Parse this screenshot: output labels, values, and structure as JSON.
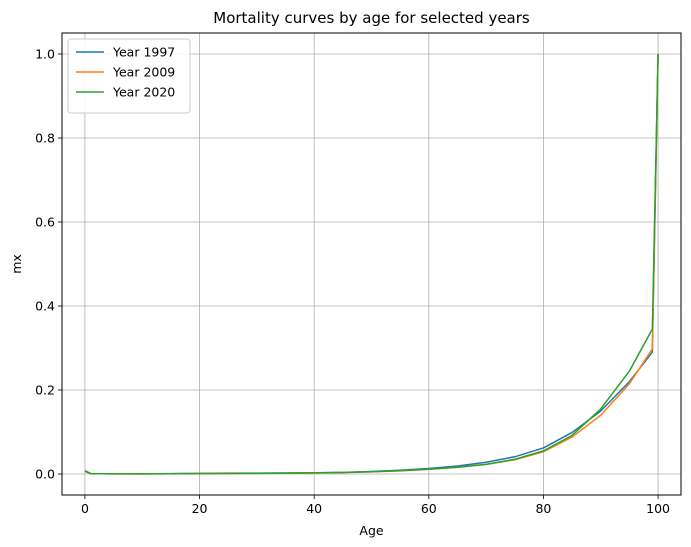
{
  "chart_data": {
    "type": "line",
    "title": "Mortality curves by age for selected years",
    "xlabel": "Age",
    "ylabel": "mx",
    "xlim": [
      -4,
      104
    ],
    "ylim": [
      -0.05,
      1.05
    ],
    "xticks": [
      0,
      20,
      40,
      60,
      80,
      100
    ],
    "xtick_labels": [
      "0",
      "20",
      "40",
      "60",
      "80",
      "100"
    ],
    "yticks": [
      0.0,
      0.2,
      0.4,
      0.6,
      0.8,
      1.0
    ],
    "ytick_labels": [
      "0.0",
      "0.2",
      "0.4",
      "0.6",
      "0.8",
      "1.0"
    ],
    "grid": true,
    "legend_position": "top-left",
    "series": [
      {
        "name": "Year 1997",
        "color": "#1f77b4",
        "x": [
          0,
          1,
          5,
          10,
          15,
          20,
          25,
          30,
          35,
          40,
          45,
          50,
          55,
          60,
          65,
          70,
          75,
          80,
          85,
          90,
          95,
          99,
          100
        ],
        "y": [
          0.008,
          0.001,
          0.0005,
          0.0004,
          0.0008,
          0.0015,
          0.002,
          0.002,
          0.0025,
          0.003,
          0.004,
          0.006,
          0.009,
          0.013,
          0.019,
          0.028,
          0.041,
          0.062,
          0.099,
          0.15,
          0.22,
          0.29,
          1.0
        ]
      },
      {
        "name": "Year 2009",
        "color": "#ff7f0e",
        "x": [
          0,
          1,
          5,
          10,
          15,
          20,
          25,
          30,
          35,
          40,
          45,
          50,
          55,
          60,
          65,
          70,
          75,
          80,
          85,
          90,
          95,
          99,
          100
        ],
        "y": [
          0.006,
          0.0008,
          0.0004,
          0.0003,
          0.0006,
          0.0012,
          0.0015,
          0.0017,
          0.002,
          0.0025,
          0.0035,
          0.005,
          0.0075,
          0.011,
          0.016,
          0.023,
          0.034,
          0.053,
          0.088,
          0.14,
          0.215,
          0.298,
          1.0
        ]
      },
      {
        "name": "Year 2020",
        "color": "#2ca02c",
        "x": [
          0,
          1,
          5,
          10,
          15,
          20,
          25,
          30,
          35,
          40,
          45,
          50,
          55,
          60,
          65,
          70,
          75,
          80,
          85,
          90,
          95,
          99,
          100
        ],
        "y": [
          0.007,
          0.0009,
          0.0004,
          0.0003,
          0.0005,
          0.001,
          0.0013,
          0.0016,
          0.002,
          0.0027,
          0.0037,
          0.0055,
          0.008,
          0.0115,
          0.016,
          0.023,
          0.035,
          0.055,
          0.092,
          0.155,
          0.245,
          0.345,
          1.0
        ]
      }
    ]
  }
}
